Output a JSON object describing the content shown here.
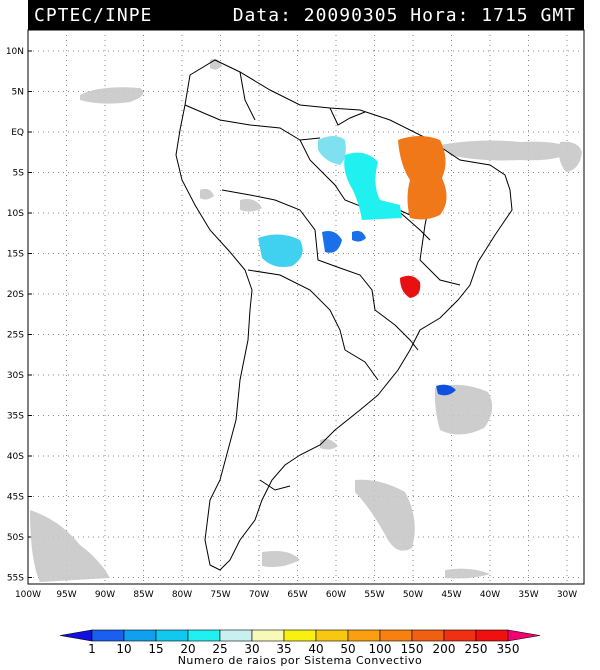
{
  "header": {
    "source": "CPTEC/INPE",
    "datetime": "Data: 20090305 Hora: 1715 GMT"
  },
  "map": {
    "lat_labels": [
      "10N",
      "5N",
      "EQ",
      "5S",
      "10S",
      "15S",
      "20S",
      "25S",
      "30S",
      "35S",
      "40S",
      "45S",
      "50S",
      "55S"
    ],
    "lon_labels": [
      "100W",
      "95W",
      "90W",
      "85W",
      "80W",
      "75W",
      "70W",
      "65W",
      "60W",
      "55W",
      "50W",
      "45W",
      "40W",
      "35W",
      "30W"
    ]
  },
  "colorbar": {
    "title": "Numero de raios por Sistema Convectivo",
    "ticks": [
      "1",
      "10",
      "15",
      "20",
      "25",
      "30",
      "35",
      "40",
      "50",
      "100",
      "150",
      "200",
      "250",
      "350"
    ],
    "colors": [
      "#1010e0",
      "#1a60f0",
      "#10a0f0",
      "#10c8f0",
      "#20f0f0",
      "#c8f0f0",
      "#f8f8b8",
      "#f8f010",
      "#f8c810",
      "#f8a010",
      "#f88010",
      "#f06010",
      "#f03010",
      "#f01010",
      "#f00070"
    ]
  },
  "systems": [
    {
      "name": "amazon-north-cyan",
      "color": "#7fe0f0"
    },
    {
      "name": "amazon-central-cyan",
      "color": "#20f0f0"
    },
    {
      "name": "northeast-orange",
      "color": "#f07818"
    },
    {
      "name": "bolivia-cyan",
      "color": "#40d0f0"
    },
    {
      "name": "mato-grosso-blue",
      "color": "#1a70e8"
    },
    {
      "name": "minas-red",
      "color": "#e81010"
    },
    {
      "name": "atlantic-blue",
      "color": "#1050e0"
    }
  ]
}
